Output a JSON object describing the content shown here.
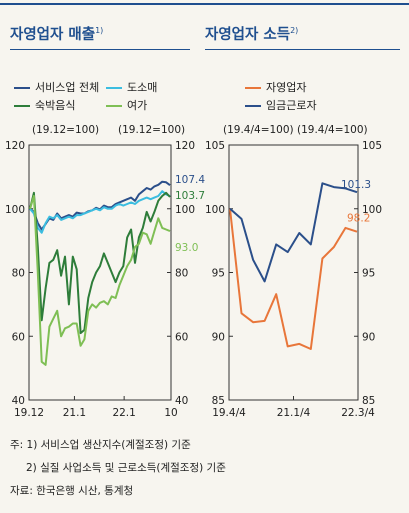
{
  "titles": {
    "left": "자영업자 매출",
    "left_sup": "1)",
    "right": "자영업자 소득",
    "right_sup": "2)"
  },
  "legend": {
    "left": [
      {
        "label": "서비스업 전체",
        "color": "#2b4f8a"
      },
      {
        "label": "도소매",
        "color": "#3bbde0"
      },
      {
        "label": "숙박음식",
        "color": "#2e7d3a"
      },
      {
        "label": "여가",
        "color": "#7fbf55"
      }
    ],
    "right": [
      {
        "label": "자영업자",
        "color": "#e8763a"
      },
      {
        "label": "임금근로자",
        "color": "#2b4f8a"
      }
    ]
  },
  "notes": {
    "line1": "주: 1) 서비스업 생산지수(계절조정) 기준",
    "line2": "2) 실질 사업소득 및 근로소득(계절조정) 기준",
    "line3": "자료: 한국은행 시산, 통계청"
  },
  "chart_data": [
    {
      "type": "line",
      "title": "자영업자 매출",
      "unit_left": "(19.12=100)",
      "unit_right": "(19.12=100)",
      "ylim_left": [
        40,
        120
      ],
      "ylim_right": [
        40,
        120
      ],
      "yticks_left": [
        "120",
        "100",
        "80",
        "60",
        "40"
      ],
      "yticks_right": [
        "120",
        "100",
        "80",
        "60",
        "40"
      ],
      "xticks": [
        "19.12",
        "21.1",
        "22.1",
        "10"
      ],
      "series": [
        {
          "name": "서비스업 전체",
          "color": "#2b4f8a",
          "end_label": "107.4",
          "values": [
            100.0,
            99.0,
            95.5,
            93.5,
            95.2,
            97.0,
            96.5,
            98.5,
            97.0,
            97.5,
            98.0,
            97.5,
            98.8,
            98.5,
            98.5,
            99.2,
            99.5,
            100.3,
            99.8,
            101.0,
            100.5,
            100.5,
            101.5,
            102.0,
            102.5,
            103.0,
            103.5,
            102.5,
            104.5,
            105.5,
            106.5,
            106.0,
            107.0,
            107.5,
            108.5,
            108.3,
            107.4
          ]
        },
        {
          "name": "도소매",
          "color": "#3bbde0",
          "end_label": "",
          "values": [
            100.0,
            98.5,
            94.0,
            92.5,
            95.5,
            97.5,
            97.0,
            98.0,
            96.5,
            97.0,
            97.5,
            97.0,
            98.0,
            98.0,
            98.5,
            99.0,
            99.5,
            100.0,
            99.5,
            100.5,
            100.0,
            100.0,
            101.0,
            101.5,
            101.0,
            101.5,
            102.0,
            101.5,
            102.5,
            103.0,
            103.5,
            103.0,
            103.5,
            104.0,
            105.5,
            104.5,
            104.0
          ]
        },
        {
          "name": "숙박음식",
          "color": "#2e7d3a",
          "end_label": "103.7",
          "values": [
            100.0,
            105.0,
            88.0,
            65.0,
            75.0,
            83.0,
            84.0,
            87.0,
            79.0,
            85.0,
            70.0,
            85.0,
            81.0,
            61.0,
            62.0,
            72.0,
            77.0,
            80.0,
            82.0,
            86.0,
            83.0,
            80.0,
            77.0,
            80.0,
            82.0,
            91.0,
            93.5,
            83.0,
            91.0,
            94.0,
            99.0,
            96.0,
            99.0,
            102.5,
            104.0,
            105.0,
            103.7
          ]
        },
        {
          "name": "여가",
          "color": "#7fbf55",
          "end_label": "93.0",
          "values": [
            100.0,
            104.0,
            80.0,
            52.0,
            51.0,
            63.0,
            65.5,
            68.0,
            60.0,
            62.5,
            63.0,
            64.0,
            64.0,
            57.0,
            59.0,
            68.0,
            70.0,
            69.0,
            70.5,
            71.0,
            70.0,
            72.5,
            72.0,
            76.0,
            79.0,
            82.0,
            84.0,
            88.0,
            89.0,
            92.5,
            92.0,
            89.0,
            93.0,
            97.0,
            94.0,
            93.5,
            93.0
          ]
        }
      ]
    },
    {
      "type": "line",
      "title": "자영업자 소득",
      "unit_left": "(19.4/4=100)",
      "unit_right": "(19.4/4=100)",
      "ylim_left": [
        85,
        105
      ],
      "ylim_right": [
        85,
        105
      ],
      "yticks_left": [
        "105",
        "100",
        "95",
        "90",
        "85"
      ],
      "yticks_right": [
        "105",
        "100",
        "95",
        "90",
        "85"
      ],
      "xticks": [
        "19.4/4",
        "21.1/4",
        "22.3/4"
      ],
      "series": [
        {
          "name": "자영업자",
          "color": "#e8763a",
          "end_label": "98.2",
          "values": [
            100.0,
            91.8,
            91.1,
            91.2,
            93.3,
            89.2,
            89.4,
            89.0,
            96.1,
            97.0,
            98.5,
            98.2
          ]
        },
        {
          "name": "임금근로자",
          "color": "#2b4f8a",
          "end_label": "101.3",
          "values": [
            100.0,
            99.2,
            96.0,
            94.3,
            97.2,
            96.6,
            98.1,
            97.2,
            102.0,
            101.7,
            101.6,
            101.3
          ]
        }
      ]
    }
  ]
}
